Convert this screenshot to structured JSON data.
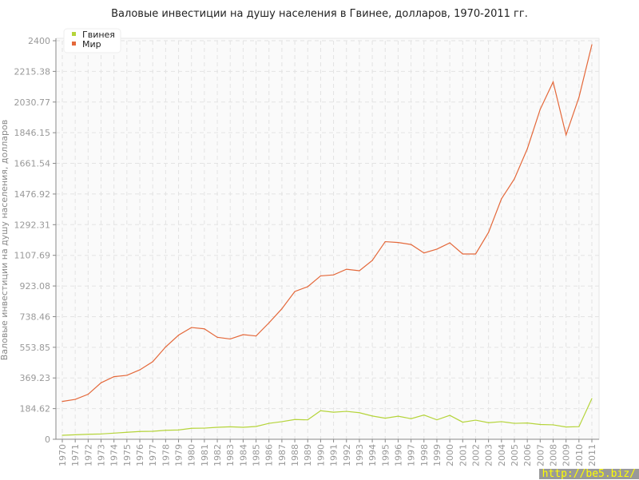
{
  "chart_data": {
    "type": "line",
    "title": "Валовые инвестиции на душу населения в Гвинее, долларов, 1970-2011 гг.",
    "ylabel": "Валовые инвестиции на душу населения, долларов",
    "xlabel": "",
    "ylim": [
      0,
      2400
    ],
    "yticks": [
      "0",
      "184.62",
      "369.23",
      "553.85",
      "738.46",
      "923.08",
      "1107.69",
      "1292.31",
      "1476.92",
      "1661.54",
      "1846.15",
      "2030.77",
      "2215.38",
      "2400"
    ],
    "x": [
      1970,
      1971,
      1972,
      1973,
      1974,
      1975,
      1976,
      1977,
      1978,
      1979,
      1980,
      1981,
      1982,
      1983,
      1984,
      1985,
      1986,
      1987,
      1988,
      1989,
      1990,
      1991,
      1992,
      1993,
      1994,
      1995,
      1996,
      1997,
      1998,
      1999,
      2000,
      2001,
      2002,
      2003,
      2004,
      2005,
      2006,
      2007,
      2008,
      2009,
      2010,
      2011
    ],
    "grid": true,
    "legend_position": "top-left",
    "series": [
      {
        "name": "Гвинея",
        "color": "#b5d43a",
        "values": [
          24,
          27,
          30,
          32,
          37,
          42,
          47,
          48,
          54,
          56,
          66,
          67,
          72,
          75,
          72,
          77,
          96,
          106,
          119,
          117,
          172,
          163,
          168,
          160,
          140,
          127,
          139,
          124,
          146,
          117,
          144,
          103,
          115,
          100,
          106,
          96,
          98,
          89,
          87,
          74,
          76,
          245
        ]
      },
      {
        "name": "Мир",
        "color": "#e4683a",
        "values": [
          228,
          240,
          271,
          340,
          377,
          385,
          418,
          467,
          556,
          627,
          673,
          665,
          614,
          604,
          630,
          622,
          701,
          786,
          890,
          919,
          984,
          990,
          1024,
          1015,
          1077,
          1190,
          1185,
          1173,
          1122,
          1145,
          1183,
          1116,
          1116,
          1246,
          1448,
          1568,
          1749,
          1987,
          2152,
          1833,
          2059,
          2376
        ]
      }
    ]
  },
  "watermark": "http://be5.biz/"
}
